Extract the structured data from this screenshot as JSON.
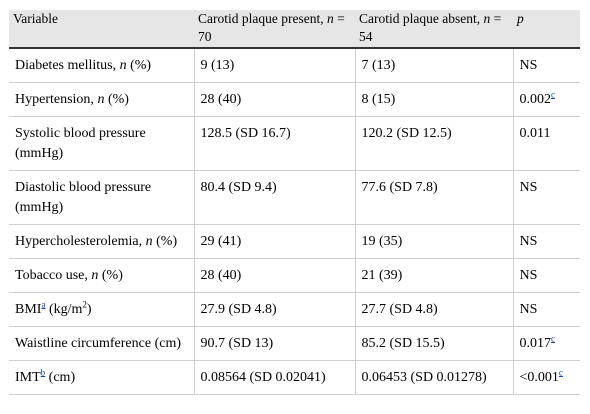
{
  "headers": {
    "variable": "Variable",
    "present_a": "Carotid plaque present, ",
    "present_n": "n",
    "present_b": " = 70",
    "absent_a": "Carotid plaque absent, ",
    "absent_n": "n",
    "absent_b": " = 54",
    "p": "p"
  },
  "rows": [
    {
      "label_a": "Diabetes mellitus, ",
      "label_n": "n",
      "label_b": " (%)",
      "present": "9 (13)",
      "absent": "7 (13)",
      "p": "NS",
      "p_ref": ""
    },
    {
      "label_a": "Hypertension, ",
      "label_n": "n",
      "label_b": " (%)",
      "present": "28 (40)",
      "absent": "8 (15)",
      "p": "0.002",
      "p_ref": "c"
    },
    {
      "label_a": "Systolic blood pressure (mmHg)",
      "label_n": "",
      "label_b": "",
      "present": "128.5 (SD 16.7)",
      "absent": "120.2 (SD 12.5)",
      "p": "0.011",
      "p_ref": ""
    },
    {
      "label_a": "Diastolic blood pressure (mmHg)",
      "label_n": "",
      "label_b": "",
      "present": "80.4 (SD 9.4)",
      "absent": "77.6 (SD 7.8)",
      "p": "NS",
      "p_ref": ""
    },
    {
      "label_a": "Hypercholesterolemia, ",
      "label_n": "n",
      "label_b": " (%)",
      "present": "29 (41)",
      "absent": "19 (35)",
      "p": "NS",
      "p_ref": ""
    },
    {
      "label_a": "Tobacco use, ",
      "label_n": "n",
      "label_b": " (%)",
      "present": "28 (40)",
      "absent": "21 (39)",
      "p": "NS",
      "p_ref": ""
    },
    {
      "label_a": "BMI",
      "label_ref": "a",
      "label_unit": " (kg/m",
      "label_exp": "2",
      "label_close": ")",
      "present": "27.9 (SD 4.8)",
      "absent": "27.7 (SD 4.8)",
      "p": "NS",
      "p_ref": ""
    },
    {
      "label_a": "Waistline circumference (cm)",
      "label_n": "",
      "label_b": "",
      "present": "90.7 (SD 13)",
      "absent": "85.2 (SD 15.5)",
      "p": "0.017",
      "p_ref": "c"
    },
    {
      "label_a": "IMT",
      "label_ref": "b",
      "label_unit": " (cm)",
      "present": "0.08564 (SD 0.02041)",
      "absent": "0.06453 (SD 0.01278)",
      "p": "<0.001",
      "p_ref": "c"
    }
  ]
}
